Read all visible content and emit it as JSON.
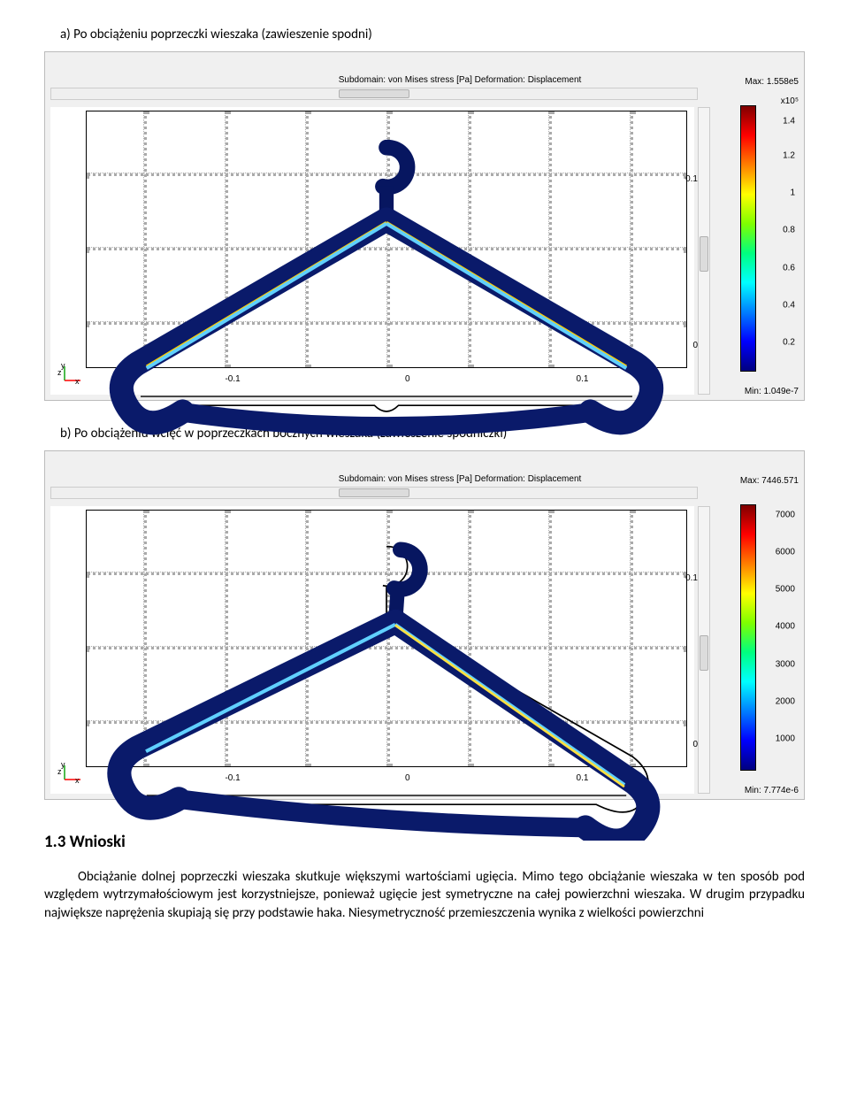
{
  "item_a": "a)   Po obciążeniu poprzeczki wieszaka (zawieszenie spodni)",
  "item_b": "b)   Po obciążeniu wcięć w poprzeczkach bocznych wieszaka (zawieszenie spódniczki)",
  "heading": "1.3 Wnioski",
  "para1": "Obciążanie dolnej poprzeczki wieszaka skutkuje większymi wartościami ugięcia. Mimo tego obciążanie wieszaka w ten sposób pod względem wytrzymałościowym jest korzystniejsze, ponieważ ugięcie jest symetryczne na całej powierzchni wieszaka. W drugim przypadku największe naprężenia skupiają się przy podstawie haka. Niesymetryczność przemieszczenia wynika z wielkości powierzchni",
  "sim1": {
    "title": "Subdomain: von Mises stress [Pa]   Deformation: Displacement",
    "max": "Max: 1.558e5",
    "exp": "x10⁵",
    "min": "Min: 1.049e-7",
    "xticks": [
      {
        "pos": 23,
        "label": "-0.1"
      },
      {
        "pos": 50,
        "label": "0"
      },
      {
        "pos": 77,
        "label": "0.1"
      }
    ],
    "yticks": [
      {
        "pos": 82,
        "label": "0"
      },
      {
        "pos": 24,
        "label": "0.1"
      }
    ],
    "cb_ticks": [
      {
        "pos": 6,
        "label": "1.4"
      },
      {
        "pos": 19,
        "label": "1.2"
      },
      {
        "pos": 33,
        "label": "1"
      },
      {
        "pos": 47,
        "label": "0.8"
      },
      {
        "pos": 61,
        "label": "0.6"
      },
      {
        "pos": 75,
        "label": "0.4"
      },
      {
        "pos": 89,
        "label": "0.2"
      }
    ],
    "cb_gradient": [
      "#7f0000",
      "#ff0000",
      "#ff7f00",
      "#ffff00",
      "#7fff00",
      "#00ff7f",
      "#00ffff",
      "#007fff",
      "#0000ff",
      "#00007f"
    ]
  },
  "sim2": {
    "title": "Subdomain: von Mises stress [Pa]   Deformation: Displacement",
    "max": "Max: 7446.571",
    "min": "Min: 7.774e-6",
    "xticks": [
      {
        "pos": 23,
        "label": "-0.1"
      },
      {
        "pos": 50,
        "label": "0"
      },
      {
        "pos": 77,
        "label": "0.1"
      }
    ],
    "yticks": [
      {
        "pos": 82,
        "label": "0"
      },
      {
        "pos": 24,
        "label": "0.1"
      }
    ],
    "cb_ticks": [
      {
        "pos": 4,
        "label": "7000"
      },
      {
        "pos": 18,
        "label": "6000"
      },
      {
        "pos": 32,
        "label": "5000"
      },
      {
        "pos": 46,
        "label": "4000"
      },
      {
        "pos": 60,
        "label": "3000"
      },
      {
        "pos": 74,
        "label": "2000"
      },
      {
        "pos": 88,
        "label": "1000"
      }
    ],
    "cb_gradient": [
      "#7f0000",
      "#ff0000",
      "#ff7f00",
      "#ffff00",
      "#7fff00",
      "#00ff7f",
      "#00ffff",
      "#007fff",
      "#0000ff",
      "#00007f"
    ]
  },
  "colors": {
    "hanger_dark": "#0a1a6a",
    "hanger_mid": "#1040d0",
    "hanger_light": "#60a0ff",
    "outline": "#000000"
  }
}
